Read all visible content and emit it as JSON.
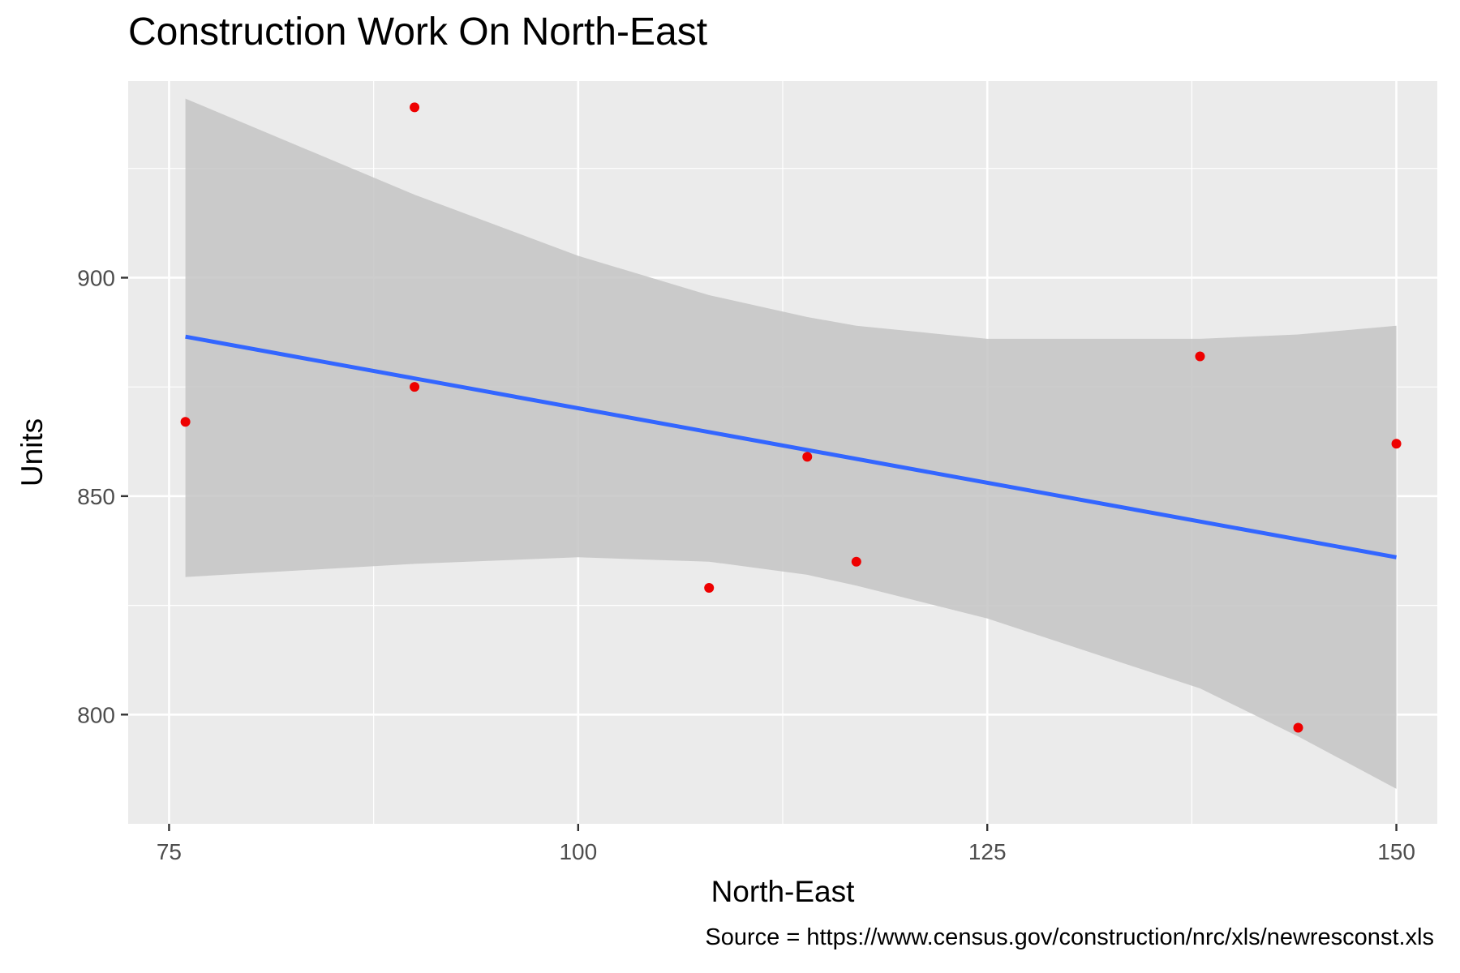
{
  "chart_data": {
    "type": "scatter",
    "title": "Construction Work On North-East",
    "xlabel": "North-East",
    "ylabel": "Units",
    "caption": "Source = https://www.census.gov/construction/nrc/xls/newresconst.xls",
    "xlim": [
      72.5,
      152.5
    ],
    "ylim": [
      775,
      945
    ],
    "x_ticks": [
      75,
      100,
      125,
      150
    ],
    "y_ticks": [
      800,
      850,
      900
    ],
    "grid": true,
    "points": [
      {
        "x": 76,
        "y": 867
      },
      {
        "x": 90,
        "y": 939
      },
      {
        "x": 90,
        "y": 875
      },
      {
        "x": 108,
        "y": 829
      },
      {
        "x": 114,
        "y": 859
      },
      {
        "x": 117,
        "y": 835
      },
      {
        "x": 138,
        "y": 882
      },
      {
        "x": 144,
        "y": 797
      },
      {
        "x": 150,
        "y": 862
      }
    ],
    "trend_line": {
      "method": "linear",
      "x": [
        76,
        150
      ],
      "y": [
        886.5,
        836
      ]
    },
    "confidence_band": {
      "x": [
        76,
        90,
        100,
        108,
        114,
        117,
        125,
        138,
        144,
        150
      ],
      "upper": [
        941,
        919,
        905,
        896,
        891,
        889,
        886,
        886,
        887,
        889
      ],
      "lower": [
        831.5,
        834.5,
        836,
        835,
        832,
        829.5,
        822,
        806,
        795,
        783
      ]
    },
    "colors": {
      "points": "#ee0000",
      "line": "#3366ff",
      "band": "#c4c4c4",
      "panel": "#ebebeb",
      "grid": "#ffffff"
    }
  }
}
